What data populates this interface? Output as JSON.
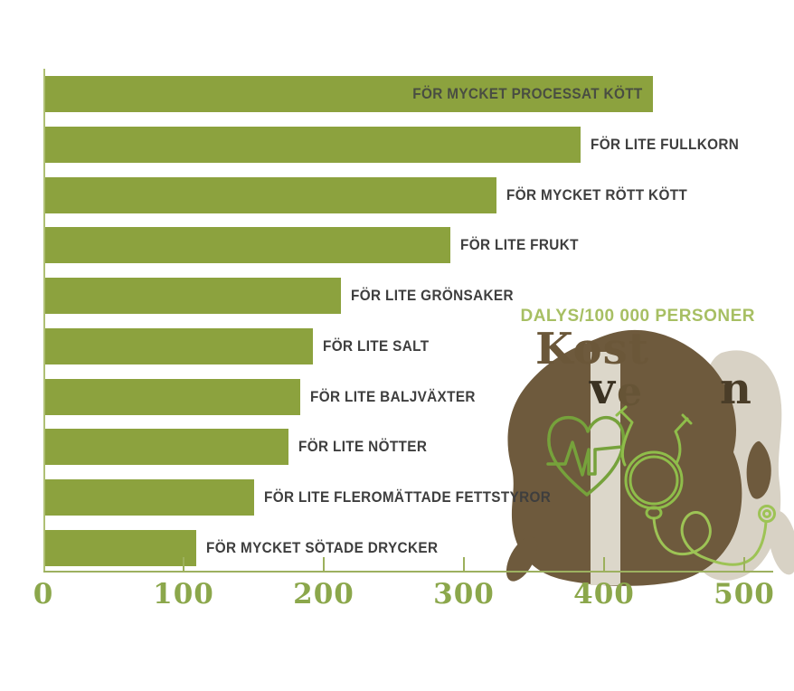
{
  "chart_data": {
    "type": "bar",
    "orientation": "horizontal",
    "title": "",
    "axis_label": "DALYS/100 000 PERSONER",
    "categories": [
      "FÖR MYCKET PROCESSAT KÖTT",
      "FÖR LITE FULLKORN",
      "FÖR MYCKET RÖTT KÖTT",
      "FÖR LITE FRUKT",
      "FÖR LITE GRÖNSAKER",
      "FÖR LITE SALT",
      "FÖR LITE BALJVÄXTER",
      "FÖR LITE NÖTTER",
      "FÖR LITE FLEROMÄTTADE FETTSTYROR",
      "FÖR MYCKET SÖTADE DRYCKER"
    ],
    "values": [
      435,
      383,
      323,
      290,
      212,
      192,
      183,
      175,
      150,
      109
    ],
    "x_ticks": [
      0,
      100,
      200,
      300,
      400,
      500
    ],
    "xlim": [
      0,
      500
    ],
    "grid": false,
    "legend": "none",
    "inside_label_index": 0,
    "bar_color": "#8CA23E"
  },
  "decor": {
    "title_line1": "Kost",
    "fragment_v": "v",
    "fragment_e": "e",
    "fragment_n": "n",
    "icons": [
      "heart-ekg-icon",
      "stethoscope-icon"
    ]
  },
  "colors": {
    "bar_green": "#8CA23E",
    "axis_number_green": "#8BA74B",
    "axis_line_green": "#9DB160",
    "bar_label_gray": "#3E3E3E",
    "dalys_label_green": "#A7BF63",
    "blob_brown": "#6E5A3D",
    "blob_beige": "#D8D2C5",
    "stripe_beige": "#DCD7CA",
    "headline_brown": "#6B5739",
    "heart_green": "#76A23B",
    "stethoscope_green": "#8FBD4A"
  }
}
